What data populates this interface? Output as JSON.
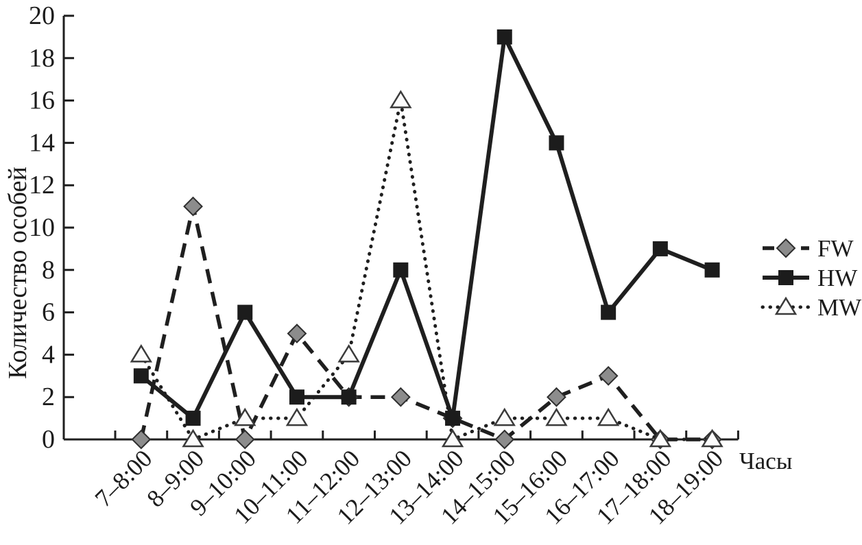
{
  "figure": {
    "background": "#ffffff",
    "ink_color": "#1f1f1f"
  },
  "chart_data": {
    "type": "line",
    "title": "",
    "xlabel": "Часы",
    "ylabel": "Количество особей",
    "categories": [
      "7–8:00",
      "8–9:00",
      "9–10:00",
      "10–11:00",
      "11–12:00",
      "12–13:00",
      "13–14:00",
      "14–15:00",
      "15–16:00",
      "16–17:00",
      "17–18:00",
      "18–19:00"
    ],
    "ylim": [
      0,
      20
    ],
    "ytick_step": 2,
    "grid": false,
    "legend_position": "right",
    "series": [
      {
        "name": "FW",
        "line_style": "dashed",
        "marker": "diamond",
        "color": "#1f1f1f",
        "marker_fill": "#8c8c8c",
        "marker_stroke": "#2e2e2e",
        "values": [
          0,
          11,
          0,
          5,
          2,
          2,
          1,
          0,
          2,
          3,
          0,
          0
        ]
      },
      {
        "name": "HW",
        "line_style": "solid",
        "marker": "square",
        "color": "#1f1f1f",
        "marker_fill": "#1c1c1c",
        "marker_stroke": "#1c1c1c",
        "values": [
          3,
          1,
          6,
          2,
          2,
          8,
          1,
          19,
          14,
          6,
          9,
          8
        ]
      },
      {
        "name": "MW",
        "line_style": "dotted",
        "marker": "triangle-up",
        "color": "#1f1f1f",
        "marker_fill": "#fcfcfc",
        "marker_stroke": "#3a3a3a",
        "values": [
          4,
          0,
          1,
          1,
          4,
          16,
          0,
          1,
          1,
          1,
          0,
          0
        ]
      }
    ]
  }
}
